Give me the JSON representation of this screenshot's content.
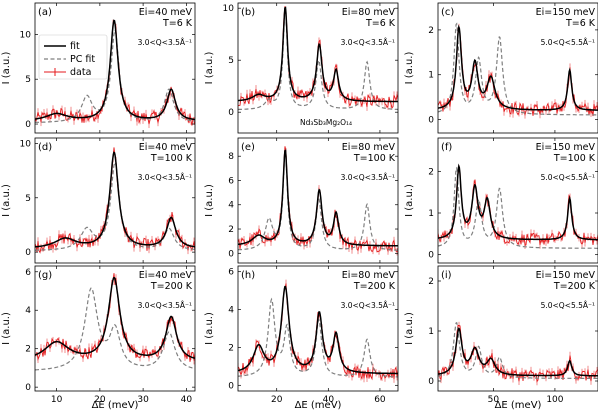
{
  "chart_data": {
    "type": "line",
    "layout": "3x3 grid of panels",
    "legend": {
      "placement": "upper-left of panel (a)",
      "entries": [
        {
          "name": "fit",
          "color": "#000000",
          "style": "solid"
        },
        {
          "name": "PC fit",
          "color": "#7f7f7f",
          "style": "dashed"
        },
        {
          "name": "data",
          "color": "#e41a1c",
          "style": "errorbar"
        }
      ]
    },
    "material_label": "Nd$_3$Sb$_3$Mg$_2$O$_{14}$",
    "material_display": "Nd₃Sb₃Mg₂O₁₄",
    "xlabel": "ΔE (meV)",
    "ylabel": "I (a.u.)",
    "columns": [
      {
        "xlim": [
          5,
          42
        ],
        "xticks": [
          10,
          20,
          30,
          40
        ],
        "ei": "Ei=40 meV",
        "q": "3.0<Q<3.5Å⁻¹"
      },
      {
        "xlim": [
          5,
          67
        ],
        "xticks": [
          20,
          40,
          60
        ],
        "ei": "Ei=80 meV",
        "q": "3.0<Q<3.5Å⁻¹"
      },
      {
        "xlim": [
          5,
          135
        ],
        "xticks": [
          50,
          100
        ],
        "ei": "Ei=150 meV",
        "q": "5.0<Q<5.5Å⁻¹"
      }
    ],
    "rows": [
      {
        "temp": "T=6 K"
      },
      {
        "temp": "T=100 K"
      },
      {
        "temp": "T=200 K"
      }
    ],
    "panels": [
      {
        "label": "(a)",
        "row": 0,
        "col": 0,
        "ylim": [
          -1,
          13.5
        ],
        "yticks": [
          0,
          5,
          10
        ],
        "fit_peaks": [
          [
            23.3,
            11.2,
            1.1
          ],
          [
            36.5,
            3.5,
            1.2
          ],
          [
            10,
            0.8,
            3
          ]
        ],
        "fit_base": 0.3,
        "pc_peaks": [
          [
            23.5,
            10.2,
            1.1
          ],
          [
            17,
            2.8,
            1.5
          ],
          [
            36,
            3.7,
            1.3
          ]
        ],
        "pc_base": 0.1,
        "data_scale": 1.0
      },
      {
        "label": "(b)",
        "row": 0,
        "col": 1,
        "ylim": [
          -2,
          10.5
        ],
        "yticks": [
          0,
          5,
          10
        ],
        "fit_peaks": [
          [
            23.3,
            9.0,
            1.1
          ],
          [
            36.5,
            5.4,
            1.3
          ],
          [
            43,
            2.9,
            1.2
          ],
          [
            13,
            0.6,
            3
          ]
        ],
        "fit_base": 1.0,
        "pc_peaks": [
          [
            23.3,
            9.8,
            1.0
          ],
          [
            36.3,
            4.7,
            1.3
          ],
          [
            55,
            4.6,
            1.3
          ],
          [
            17,
            0.8,
            2
          ]
        ],
        "pc_base": 0.2,
        "data_scale": 1.0,
        "show_material": true
      },
      {
        "label": "(c)",
        "row": 0,
        "col": 2,
        "ylim": [
          -0.3,
          2.6
        ],
        "yticks": [
          0,
          1,
          2
        ],
        "fit_peaks": [
          [
            22,
            1.8,
            2.5
          ],
          [
            35,
            1.0,
            3
          ],
          [
            48,
            0.7,
            4
          ],
          [
            112,
            0.9,
            2
          ]
        ],
        "fit_base": 0.2,
        "pc_peaks": [
          [
            20,
            2.0,
            2.5
          ],
          [
            38,
            1.2,
            3
          ],
          [
            55,
            1.7,
            3
          ]
        ],
        "pc_base": 0.1,
        "data_scale": 1.0
      },
      {
        "label": "(d)",
        "row": 1,
        "col": 0,
        "ylim": [
          -1,
          10.5
        ],
        "yticks": [
          0,
          5,
          10
        ],
        "fit_peaks": [
          [
            23.3,
            8.8,
            1.2
          ],
          [
            36.5,
            2.8,
            1.3
          ],
          [
            12,
            0.9,
            3
          ]
        ],
        "fit_base": 0.3,
        "pc_peaks": [
          [
            23.5,
            8.0,
            1.2
          ],
          [
            17,
            1.9,
            1.8
          ],
          [
            36,
            2.0,
            1.4
          ]
        ],
        "pc_base": 0.1,
        "data_scale": 1.0
      },
      {
        "label": "(e)",
        "row": 1,
        "col": 1,
        "ylim": [
          -0.8,
          9.5
        ],
        "yticks": [
          0,
          2,
          4,
          6,
          8
        ],
        "fit_peaks": [
          [
            23.3,
            7.8,
            1.1
          ],
          [
            36.5,
            4.5,
            1.3
          ],
          [
            43,
            2.6,
            1.2
          ],
          [
            13,
            0.8,
            3
          ]
        ],
        "fit_base": 0.6,
        "pc_peaks": [
          [
            23.3,
            8.2,
            1.0
          ],
          [
            17,
            2.5,
            1.8
          ],
          [
            36.3,
            4.2,
            1.3
          ],
          [
            55,
            3.8,
            1.3
          ]
        ],
        "pc_base": 0.2,
        "data_scale": 1.0
      },
      {
        "label": "(f)",
        "row": 1,
        "col": 2,
        "ylim": [
          -0.2,
          2.8
        ],
        "yticks": [
          0,
          1,
          2
        ],
        "fit_peaks": [
          [
            22,
            1.7,
            2.3
          ],
          [
            35,
            1.2,
            3
          ],
          [
            45,
            0.9,
            3
          ],
          [
            112,
            1.0,
            2
          ]
        ],
        "fit_base": 0.35,
        "pc_peaks": [
          [
            20,
            1.9,
            2.3
          ],
          [
            38,
            1.1,
            3
          ],
          [
            55,
            1.4,
            3
          ]
        ],
        "pc_base": 0.15,
        "data_scale": 1.0
      },
      {
        "label": "(g)",
        "row": 2,
        "col": 0,
        "ylim": [
          -0.2,
          6.3
        ],
        "yticks": [
          0,
          2,
          4,
          6
        ],
        "fit_peaks": [
          [
            23.3,
            4.3,
            1.6
          ],
          [
            36.5,
            2.3,
            1.5
          ],
          [
            10,
            1.0,
            3.5
          ]
        ],
        "fit_base": 1.3,
        "pc_peaks": [
          [
            18,
            4.2,
            1.8
          ],
          [
            23.5,
            2.0,
            1.5
          ],
          [
            36,
            2.0,
            1.6
          ]
        ],
        "pc_base": 0.8,
        "data_scale": 1.0
      },
      {
        "label": "(h)",
        "row": 2,
        "col": 1,
        "ylim": [
          -0.3,
          6.3
        ],
        "yticks": [
          0,
          2,
          4,
          6
        ],
        "fit_peaks": [
          [
            23.3,
            4.5,
            1.8
          ],
          [
            36.5,
            3.1,
            1.5
          ],
          [
            43,
            2.0,
            1.4
          ],
          [
            13,
            1.4,
            2.5
          ]
        ],
        "fit_base": 0.6,
        "pc_peaks": [
          [
            18,
            4.0,
            1.6
          ],
          [
            24,
            2.5,
            1.4
          ],
          [
            36.3,
            3.0,
            1.4
          ],
          [
            55,
            2.0,
            1.4
          ]
        ],
        "pc_base": 0.4,
        "data_scale": 1.0
      },
      {
        "label": "(i)",
        "row": 2,
        "col": 2,
        "ylim": [
          -0.2,
          2.3
        ],
        "yticks": [
          0,
          1,
          2
        ],
        "fit_peaks": [
          [
            22,
            0.9,
            3
          ],
          [
            35,
            0.5,
            4
          ],
          [
            48,
            0.3,
            4
          ],
          [
            112,
            0.3,
            2
          ]
        ],
        "fit_base": 0.1,
        "pc_peaks": [
          [
            20,
            1.1,
            3
          ],
          [
            38,
            0.6,
            3
          ],
          [
            55,
            0.4,
            3
          ]
        ],
        "pc_base": 0.05,
        "data_scale": 1.0
      }
    ]
  }
}
